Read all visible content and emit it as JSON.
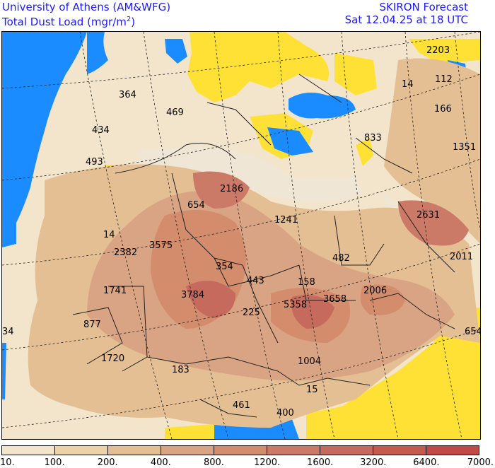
{
  "header": {
    "institution": "University of Athens (AM&WFG)",
    "quantity_prefix": "Total Dust Load (mgr/m",
    "quantity_sup": "2",
    "quantity_suffix": ")",
    "product": "SKIRON Forecast",
    "valid_time": "Sat 12.04.25 at 18 UTC"
  },
  "colors": {
    "sea": "#1a8cff",
    "no_data": "#ffe135",
    "border": "#222222",
    "grid": "#222222"
  },
  "legend": {
    "ticks": [
      "10.",
      "100.",
      "200.",
      "400.",
      "800.",
      "1200.",
      "1600.",
      "3200.",
      "6400.",
      "7000."
    ],
    "swatches": [
      "#f2e5cc",
      "#ecd2a7",
      "#e5bf94",
      "#d9a483",
      "#d38c6c",
      "#cc7a68",
      "#c56a5c",
      "#c55a4f",
      "#c04a45"
    ]
  },
  "values": [
    {
      "id": "2203",
      "text": "2203"
    },
    {
      "id": "112",
      "text": "112"
    },
    {
      "id": "14a",
      "text": "14"
    },
    {
      "id": "364",
      "text": "364"
    },
    {
      "id": "166",
      "text": "166"
    },
    {
      "id": "469",
      "text": "469"
    },
    {
      "id": "434",
      "text": "434"
    },
    {
      "id": "833",
      "text": "833"
    },
    {
      "id": "1351",
      "text": "1351"
    },
    {
      "id": "493",
      "text": "493"
    },
    {
      "id": "2186",
      "text": "2186"
    },
    {
      "id": "654",
      "text": "654"
    },
    {
      "id": "1241",
      "text": "1241"
    },
    {
      "id": "2631",
      "text": "2631"
    },
    {
      "id": "14b",
      "text": "14"
    },
    {
      "id": "3575",
      "text": "3575"
    },
    {
      "id": "2382",
      "text": "2382"
    },
    {
      "id": "482",
      "text": "482"
    },
    {
      "id": "2011",
      "text": "2011"
    },
    {
      "id": "354",
      "text": "354"
    },
    {
      "id": "443",
      "text": "443"
    },
    {
      "id": "158",
      "text": "158"
    },
    {
      "id": "1741",
      "text": "1741"
    },
    {
      "id": "3784",
      "text": "3784"
    },
    {
      "id": "3658",
      "text": "3658"
    },
    {
      "id": "2006",
      "text": "2006"
    },
    {
      "id": "5358",
      "text": "5358"
    },
    {
      "id": "225",
      "text": "225"
    },
    {
      "id": "877",
      "text": "877"
    },
    {
      "id": "34",
      "text": "34"
    },
    {
      "id": "654b",
      "text": "654"
    },
    {
      "id": "1720",
      "text": "1720"
    },
    {
      "id": "1004",
      "text": "1004"
    },
    {
      "id": "183",
      "text": "183"
    },
    {
      "id": "15",
      "text": "15"
    },
    {
      "id": "461",
      "text": "461"
    },
    {
      "id": "400",
      "text": "400"
    }
  ]
}
